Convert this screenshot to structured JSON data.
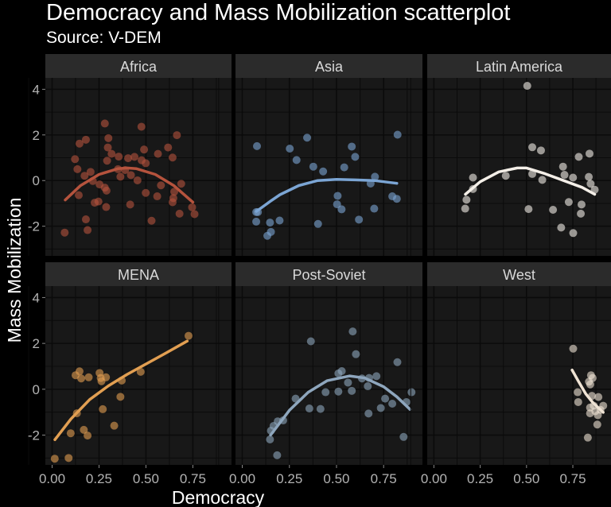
{
  "chart_data": {
    "type": "scatter",
    "title": "Democracy and Mass Mobilization scatterplot",
    "subtitle": "Source: V-DEM",
    "xlabel": "Democracy",
    "ylabel": "Mass Mobilization",
    "xlim": [
      -0.036,
      0.956
    ],
    "ylim": [
      -3.3,
      4.5
    ],
    "x_ticks": [
      "0.00",
      "0.25",
      "0.50",
      "0.75"
    ],
    "x_tick_values": [
      0,
      0.25,
      0.5,
      0.75
    ],
    "y_ticks": [
      "-2",
      "0",
      "2",
      "4"
    ],
    "y_tick_values": [
      -2,
      0,
      2,
      4
    ],
    "grid": true,
    "background": "#000000",
    "panel_background": "#181818",
    "strip_background": "#2b2b2b",
    "facets": [
      {
        "name": "Africa",
        "color": "#b5533d",
        "points": [
          [
            0.067,
            -2.28
          ],
          [
            0.122,
            0.94
          ],
          [
            0.135,
            0.5
          ],
          [
            0.142,
            -0.64
          ],
          [
            0.146,
            1.62
          ],
          [
            0.18,
            1.79
          ],
          [
            0.173,
            0.21
          ],
          [
            0.18,
            -1.7
          ],
          [
            0.189,
            -2.17
          ],
          [
            0.205,
            0.38
          ],
          [
            0.217,
            -0.02
          ],
          [
            0.227,
            -0.97
          ],
          [
            0.247,
            -0.92
          ],
          [
            0.253,
            -0.17
          ],
          [
            0.281,
            2.5
          ],
          [
            0.281,
            -0.31
          ],
          [
            0.288,
            -1.16
          ],
          [
            0.29,
            -0.44
          ],
          [
            0.293,
            0.87
          ],
          [
            0.3,
            1.86
          ],
          [
            0.297,
            1.45
          ],
          [
            0.317,
            1.17
          ],
          [
            0.355,
            1.05
          ],
          [
            0.351,
            0.5
          ],
          [
            0.364,
            0.17
          ],
          [
            0.389,
            0.46
          ],
          [
            0.405,
            0.98
          ],
          [
            0.42,
            0.24
          ],
          [
            0.416,
            -1.05
          ],
          [
            0.439,
            1.04
          ],
          [
            0.455,
            0.01
          ],
          [
            0.476,
            2.36
          ],
          [
            0.477,
            0.89
          ],
          [
            0.49,
            1.36
          ],
          [
            0.499,
            0.76
          ],
          [
            0.499,
            -0.54
          ],
          [
            0.53,
            -1.76
          ],
          [
            0.56,
            -0.69
          ],
          [
            0.564,
            1.17
          ],
          [
            0.58,
            -0.21
          ],
          [
            0.618,
            1.45
          ],
          [
            0.642,
            1.01
          ],
          [
            0.642,
            -0.95
          ],
          [
            0.646,
            -0.77
          ],
          [
            0.651,
            -0.49
          ],
          [
            0.665,
            1.99
          ],
          [
            0.679,
            -1.45
          ],
          [
            0.688,
            -0.14
          ],
          [
            0.746,
            -1.17
          ],
          [
            0.759,
            -1.47
          ]
        ],
        "fit": [
          [
            0.07,
            -0.85
          ],
          [
            0.15,
            -0.23
          ],
          [
            0.25,
            0.27
          ],
          [
            0.35,
            0.52
          ],
          [
            0.4,
            0.55
          ],
          [
            0.45,
            0.52
          ],
          [
            0.55,
            0.27
          ],
          [
            0.65,
            -0.23
          ],
          [
            0.75,
            -0.95
          ]
        ]
      },
      {
        "name": "Asia",
        "color": "#7ba5d4",
        "points": [
          [
            0.078,
            1.51
          ],
          [
            0.074,
            -1.38
          ],
          [
            0.083,
            -1.38
          ],
          [
            0.074,
            -1.8
          ],
          [
            0.147,
            -1.84
          ],
          [
            0.198,
            -1.75
          ],
          [
            0.152,
            -2.25
          ],
          [
            0.133,
            -2.42
          ],
          [
            0.252,
            1.4
          ],
          [
            0.288,
            0.9
          ],
          [
            0.344,
            1.88
          ],
          [
            0.377,
            0.61
          ],
          [
            0.402,
            -1.9
          ],
          [
            0.429,
            0.4
          ],
          [
            0.506,
            -0.67
          ],
          [
            0.503,
            -1.04
          ],
          [
            0.527,
            -1.26
          ],
          [
            0.541,
            0.58
          ],
          [
            0.581,
            1.49
          ],
          [
            0.599,
            1.04
          ],
          [
            0.619,
            -1.71
          ],
          [
            0.681,
            -0.13
          ],
          [
            0.704,
            0.17
          ],
          [
            0.7,
            -1.23
          ],
          [
            0.796,
            -0.69
          ],
          [
            0.82,
            -0.8
          ],
          [
            0.824,
            2.01
          ]
        ],
        "fit": [
          [
            0.075,
            -1.35
          ],
          [
            0.15,
            -0.9
          ],
          [
            0.2,
            -0.62
          ],
          [
            0.3,
            -0.22
          ],
          [
            0.4,
            0.0
          ],
          [
            0.5,
            0.05
          ],
          [
            0.6,
            0.03
          ],
          [
            0.7,
            0.0
          ],
          [
            0.82,
            -0.12
          ]
        ]
      },
      {
        "name": "Latin America",
        "color": "#f4efe8",
        "points": [
          [
            0.504,
            4.15
          ],
          [
            0.211,
            0.13
          ],
          [
            0.211,
            -0.37
          ],
          [
            0.176,
            -0.84
          ],
          [
            0.169,
            -1.23
          ],
          [
            0.388,
            0.21
          ],
          [
            0.531,
            1.46
          ],
          [
            0.578,
            1.32
          ],
          [
            0.531,
            0.29
          ],
          [
            0.585,
            0.03
          ],
          [
            0.511,
            -1.25
          ],
          [
            0.643,
            -1.28
          ],
          [
            0.687,
            -2.06
          ],
          [
            0.697,
            0.61
          ],
          [
            0.705,
            0.25
          ],
          [
            0.751,
            0.13
          ],
          [
            0.728,
            -0.94
          ],
          [
            0.782,
            1.04
          ],
          [
            0.84,
            1.18
          ],
          [
            0.797,
            -1.05
          ],
          [
            0.793,
            -1.45
          ],
          [
            0.752,
            -2.3
          ],
          [
            0.836,
            0.16
          ],
          [
            0.846,
            -0.14
          ],
          [
            0.868,
            -0.4
          ]
        ],
        "fit": [
          [
            0.17,
            -0.6
          ],
          [
            0.25,
            -0.05
          ],
          [
            0.35,
            0.38
          ],
          [
            0.45,
            0.55
          ],
          [
            0.5,
            0.55
          ],
          [
            0.6,
            0.3
          ],
          [
            0.7,
            0.0
          ],
          [
            0.8,
            -0.3
          ],
          [
            0.868,
            -0.6
          ]
        ]
      },
      {
        "name": "MENA",
        "color": "#e29f52",
        "points": [
          [
            0.014,
            -3.03
          ],
          [
            0.088,
            -3.0
          ],
          [
            0.099,
            -1.92
          ],
          [
            0.125,
            0.61
          ],
          [
            0.132,
            -1.05
          ],
          [
            0.146,
            0.78
          ],
          [
            0.155,
            0.47
          ],
          [
            0.169,
            -1.77
          ],
          [
            0.189,
            -2.02
          ],
          [
            0.195,
            0.52
          ],
          [
            0.253,
            0.71
          ],
          [
            0.259,
            0.49
          ],
          [
            0.263,
            0.35
          ],
          [
            0.27,
            -0.87
          ],
          [
            0.287,
            0.52
          ],
          [
            0.331,
            -1.59
          ],
          [
            0.364,
            -0.33
          ],
          [
            0.371,
            0.38
          ],
          [
            0.472,
            0.76
          ],
          [
            0.727,
            2.33
          ]
        ],
        "fit": [
          [
            0.015,
            -2.2
          ],
          [
            0.1,
            -1.3
          ],
          [
            0.2,
            -0.45
          ],
          [
            0.3,
            0.15
          ],
          [
            0.4,
            0.65
          ],
          [
            0.5,
            1.1
          ],
          [
            0.6,
            1.55
          ],
          [
            0.72,
            2.1
          ]
        ]
      },
      {
        "name": "Post-Soviet",
        "color": "#8ea6bd",
        "points": [
          [
            0.147,
            -2.19
          ],
          [
            0.185,
            -2.88
          ],
          [
            0.152,
            -1.81
          ],
          [
            0.166,
            -1.6
          ],
          [
            0.188,
            -1.4
          ],
          [
            0.217,
            -1.36
          ],
          [
            0.283,
            -0.41
          ],
          [
            0.364,
            2.09
          ],
          [
            0.356,
            -0.84
          ],
          [
            0.415,
            -0.86
          ],
          [
            0.442,
            -0.13
          ],
          [
            0.51,
            -0.1
          ],
          [
            0.51,
            0.69
          ],
          [
            0.528,
            0.79
          ],
          [
            0.561,
            0.29
          ],
          [
            0.581,
            -0.07
          ],
          [
            0.586,
            2.52
          ],
          [
            0.603,
            1.53
          ],
          [
            0.635,
            0.47
          ],
          [
            0.673,
            0.49
          ],
          [
            0.666,
            0.13
          ],
          [
            0.67,
            -1.06
          ],
          [
            0.712,
            0.57
          ],
          [
            0.735,
            -0.82
          ],
          [
            0.758,
            -0.41
          ],
          [
            0.796,
            -0.63
          ],
          [
            0.823,
            1.18
          ],
          [
            0.856,
            -2.08
          ],
          [
            0.871,
            -0.56
          ],
          [
            0.898,
            -0.13
          ]
        ],
        "fit": [
          [
            0.15,
            -2.0
          ],
          [
            0.25,
            -0.92
          ],
          [
            0.35,
            -0.13
          ],
          [
            0.45,
            0.37
          ],
          [
            0.57,
            0.58
          ],
          [
            0.65,
            0.49
          ],
          [
            0.75,
            0.11
          ],
          [
            0.82,
            -0.33
          ],
          [
            0.89,
            -0.88
          ]
        ]
      },
      {
        "name": "West",
        "color": "#efe3d4",
        "points": [
          [
            0.752,
            1.77
          ],
          [
            0.776,
            -0.13
          ],
          [
            0.779,
            -0.56
          ],
          [
            0.831,
            -2.11
          ],
          [
            0.848,
            0.61
          ],
          [
            0.857,
            0.49
          ],
          [
            0.837,
            0.33
          ],
          [
            0.844,
            0.21
          ],
          [
            0.853,
            -0.29
          ],
          [
            0.888,
            -0.34
          ],
          [
            0.843,
            -0.8
          ],
          [
            0.843,
            -1.05
          ],
          [
            0.863,
            -0.72
          ],
          [
            0.885,
            -1.13
          ],
          [
            0.882,
            -1.54
          ],
          [
            0.914,
            -0.72
          ],
          [
            0.899,
            -0.9
          ],
          [
            0.871,
            -0.96
          ]
        ],
        "fit": [
          [
            0.746,
            0.84
          ],
          [
            0.78,
            0.35
          ],
          [
            0.82,
            -0.2
          ],
          [
            0.86,
            -0.6
          ],
          [
            0.914,
            -1.01
          ]
        ]
      }
    ]
  }
}
